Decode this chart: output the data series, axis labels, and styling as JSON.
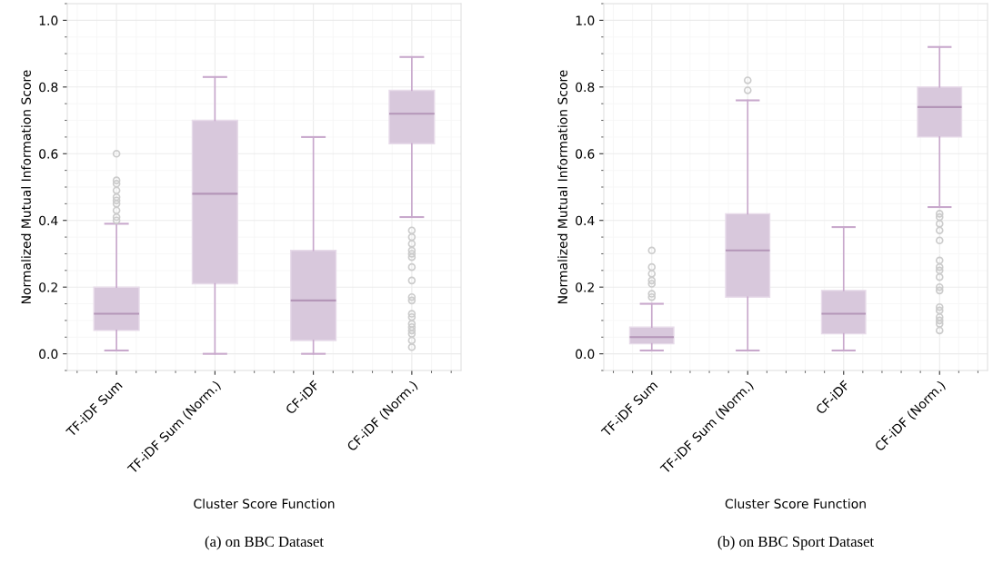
{
  "chart_data": [
    {
      "type": "box",
      "xlabel": "Cluster Score Function",
      "ylabel": "Normalized Mutual Information Score",
      "categories": [
        "TF-iDF Sum",
        "TF-iDF Sum (Norm.)",
        "CF-iDF",
        "CF-iDF (Norm.)"
      ],
      "color": "#d8c8dc",
      "ylim": [
        -0.05,
        1.05
      ],
      "yticks": [
        {
          "value": 0,
          "label": "0.0"
        },
        {
          "value": 0.2,
          "label": "0.2"
        },
        {
          "value": 0.4,
          "label": "0.4"
        },
        {
          "value": 0.6,
          "label": "0.6"
        },
        {
          "value": 0.8,
          "label": "0.8"
        },
        {
          "value": 1,
          "label": "1.0"
        }
      ],
      "grid": true,
      "annotations": [
        "(a) on BBC Dataset"
      ],
      "boxes": [
        {
          "low": 0.01,
          "q1": 0.07,
          "median": 0.12,
          "q3": 0.2,
          "high": 0.39,
          "outliers": [
            0.6,
            0.52,
            0.51,
            0.49,
            0.47,
            0.46,
            0.45,
            0.43,
            0.41,
            0.4
          ]
        },
        {
          "low": 0.0,
          "q1": 0.21,
          "median": 0.48,
          "q3": 0.7,
          "high": 0.83
        },
        {
          "low": 0.0,
          "q1": 0.04,
          "median": 0.16,
          "q3": 0.31,
          "high": 0.65
        },
        {
          "low": 0.41,
          "q1": 0.63,
          "median": 0.72,
          "q3": 0.79,
          "high": 0.89,
          "outliers": [
            0.37,
            0.35,
            0.33,
            0.31,
            0.3,
            0.29,
            0.26,
            0.22,
            0.17,
            0.16,
            0.12,
            0.11,
            0.09,
            0.08,
            0.07,
            0.06,
            0.04,
            0.02
          ]
        }
      ]
    },
    {
      "type": "box",
      "xlabel": "Cluster Score Function",
      "ylabel": "Normalized Mutual Information Score",
      "categories": [
        "TF-iDF Sum",
        "TF-iDF Sum (Norm.)",
        "CF-iDF",
        "CF-iDF (Norm.)"
      ],
      "color": "#d8c8dc",
      "ylim": [
        -0.05,
        1.05
      ],
      "yticks": [
        {
          "value": 0,
          "label": "0.0"
        },
        {
          "value": 0.2,
          "label": "0.2"
        },
        {
          "value": 0.4,
          "label": "0.4"
        },
        {
          "value": 0.6,
          "label": "0.6"
        },
        {
          "value": 0.8,
          "label": "0.8"
        },
        {
          "value": 1,
          "label": "1.0"
        }
      ],
      "grid": true,
      "annotations": [
        "(b) on BBC Sport Dataset"
      ],
      "boxes": [
        {
          "low": 0.01,
          "q1": 0.03,
          "median": 0.05,
          "q3": 0.08,
          "high": 0.15,
          "outliers": [
            0.31,
            0.26,
            0.24,
            0.22,
            0.21,
            0.18,
            0.17
          ]
        },
        {
          "low": 0.01,
          "q1": 0.17,
          "median": 0.31,
          "q3": 0.42,
          "high": 0.76,
          "outliers": [
            0.82,
            0.79
          ]
        },
        {
          "low": 0.01,
          "q1": 0.06,
          "median": 0.12,
          "q3": 0.19,
          "high": 0.38
        },
        {
          "low": 0.44,
          "q1": 0.65,
          "median": 0.74,
          "q3": 0.8,
          "high": 0.92,
          "outliers": [
            0.42,
            0.41,
            0.39,
            0.37,
            0.34,
            0.28,
            0.26,
            0.25,
            0.23,
            0.2,
            0.19,
            0.14,
            0.13,
            0.11,
            0.1,
            0.09,
            0.07
          ]
        }
      ]
    }
  ]
}
